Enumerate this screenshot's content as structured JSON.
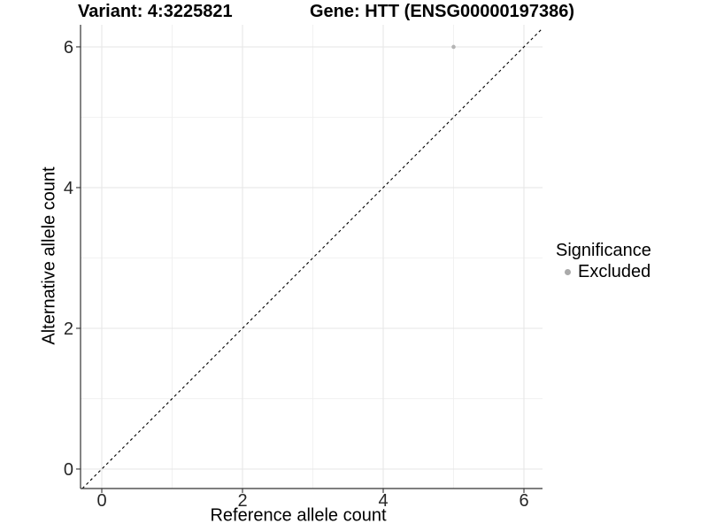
{
  "header": {
    "variant_title": "Variant: 4:3225821",
    "gene_title": "Gene: HTT (ENSG00000197386)"
  },
  "legend": {
    "title": "Significance",
    "items": [
      {
        "label": "Excluded",
        "color": "#aaaaaa"
      }
    ]
  },
  "chart_data": {
    "type": "scatter",
    "title_left": "Variant: 4:3225821",
    "title_right": "Gene: HTT (ENSG00000197386)",
    "xlabel": "Reference allele count",
    "ylabel": "Alternative allele count",
    "xlim": [
      -0.302,
      6.264
    ],
    "ylim": [
      -0.277,
      6.314
    ],
    "xticks": [
      0,
      2,
      4,
      6
    ],
    "yticks": [
      0,
      2,
      4,
      6
    ],
    "xminor_ticks": [
      1,
      3,
      5
    ],
    "yminor_ticks": [
      1,
      3,
      5
    ],
    "grid": "major and minor, light gray on white",
    "legend_position": "right",
    "reference_line": {
      "type": "identity",
      "equation": "y = x",
      "style": "dashed",
      "color": "#000000"
    },
    "series": [
      {
        "name": "Excluded",
        "color": "#b5b5b5",
        "points": [
          {
            "x": 5,
            "y": 6
          }
        ]
      }
    ]
  },
  "colors": {
    "background": "#ffffff",
    "axis_line": "#333333",
    "grid_major": "#e5e5e5",
    "grid_minor": "#f0f0f0",
    "tick_label": "#262626",
    "point_gray": "#b5b5b5",
    "legend_dot_gray": "#aaaaaa"
  }
}
